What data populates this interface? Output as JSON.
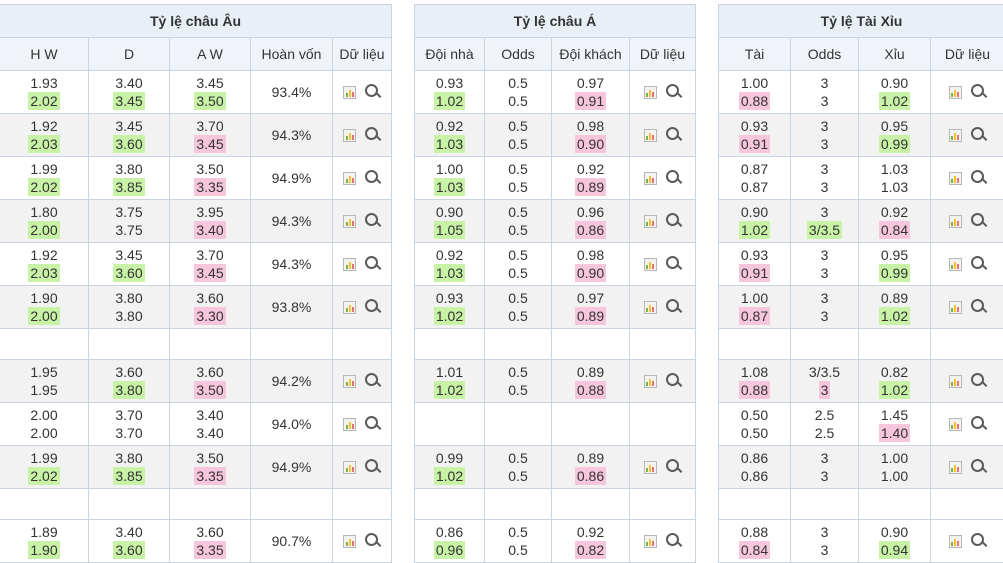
{
  "colors": {
    "up": "#c8f2a6",
    "down": "#f7c6dc",
    "header_bg": "#e8eff7",
    "border": "#c9d5e2"
  },
  "icons": {
    "chart": "bar-chart-icon",
    "search": "magnifier-icon"
  },
  "sections": [
    {
      "title": "Tỷ lệ châu Âu",
      "headers": [
        "H W",
        "D",
        "A W",
        "Hoàn vốn",
        "Dữ liệu"
      ]
    },
    {
      "title": "Tỷ lệ châu Á",
      "headers": [
        "Đội nhà",
        "Odds",
        "Đội khách",
        "Dữ liệu"
      ]
    },
    {
      "title": "Tỷ lệ Tài Xỉu",
      "headers": [
        "Tài",
        "Odds",
        "Xỉu",
        "Dữ liệu"
      ]
    }
  ],
  "rows": [
    {
      "style": "white",
      "eu": {
        "hw": [
          "1.93",
          "2.02"
        ],
        "d": [
          "3.40",
          "3.45"
        ],
        "aw": [
          "3.45",
          "3.50"
        ],
        "hwc": "up",
        "dc": "up",
        "awc": "up",
        "pct": "93.4%"
      },
      "asia": {
        "home": [
          "0.93",
          "1.02"
        ],
        "odds": [
          "0.5",
          "0.5"
        ],
        "away": [
          "0.97",
          "0.91"
        ],
        "hc": "up",
        "ac": "down"
      },
      "ou": {
        "over": [
          "1.00",
          "0.88"
        ],
        "odds": [
          "3",
          "3"
        ],
        "under": [
          "0.90",
          "1.02"
        ],
        "oc": "down",
        "uc": "up"
      }
    },
    {
      "style": "grey",
      "eu": {
        "hw": [
          "1.92",
          "2.03"
        ],
        "d": [
          "3.45",
          "3.60"
        ],
        "aw": [
          "3.70",
          "3.45"
        ],
        "hwc": "up",
        "dc": "up",
        "awc": "down",
        "pct": "94.3%"
      },
      "asia": {
        "home": [
          "0.92",
          "1.03"
        ],
        "odds": [
          "0.5",
          "0.5"
        ],
        "away": [
          "0.98",
          "0.90"
        ],
        "hc": "up",
        "ac": "down"
      },
      "ou": {
        "over": [
          "0.93",
          "0.91"
        ],
        "odds": [
          "3",
          "3"
        ],
        "under": [
          "0.95",
          "0.99"
        ],
        "oc": "down",
        "uc": "up"
      }
    },
    {
      "style": "white",
      "eu": {
        "hw": [
          "1.99",
          "2.02"
        ],
        "d": [
          "3.80",
          "3.85"
        ],
        "aw": [
          "3.50",
          "3.35"
        ],
        "hwc": "up",
        "dc": "up",
        "awc": "down",
        "pct": "94.9%"
      },
      "asia": {
        "home": [
          "1.00",
          "1.03"
        ],
        "odds": [
          "0.5",
          "0.5"
        ],
        "away": [
          "0.92",
          "0.89"
        ],
        "hc": "up",
        "ac": "down"
      },
      "ou": {
        "over": [
          "0.87",
          "0.87"
        ],
        "odds": [
          "3",
          "3"
        ],
        "under": [
          "1.03",
          "1.03"
        ],
        "oc": "",
        "uc": ""
      }
    },
    {
      "style": "grey",
      "eu": {
        "hw": [
          "1.80",
          "2.00"
        ],
        "d": [
          "3.75",
          "3.75"
        ],
        "aw": [
          "3.95",
          "3.40"
        ],
        "hwc": "up",
        "dc": "",
        "awc": "down",
        "pct": "94.3%"
      },
      "asia": {
        "home": [
          "0.90",
          "1.05"
        ],
        "odds": [
          "0.5",
          "0.5"
        ],
        "away": [
          "0.96",
          "0.86"
        ],
        "hc": "up",
        "ac": "down"
      },
      "ou": {
        "over": [
          "0.90",
          "1.02"
        ],
        "odds": [
          "3",
          "3/3.5"
        ],
        "under": [
          "0.92",
          "0.84"
        ],
        "oc": "up",
        "odc": "up",
        "uc": "down"
      }
    },
    {
      "style": "white",
      "eu": {
        "hw": [
          "1.92",
          "2.03"
        ],
        "d": [
          "3.45",
          "3.60"
        ],
        "aw": [
          "3.70",
          "3.45"
        ],
        "hwc": "up",
        "dc": "up",
        "awc": "down",
        "pct": "94.3%"
      },
      "asia": {
        "home": [
          "0.92",
          "1.03"
        ],
        "odds": [
          "0.5",
          "0.5"
        ],
        "away": [
          "0.98",
          "0.90"
        ],
        "hc": "up",
        "ac": "down"
      },
      "ou": {
        "over": [
          "0.93",
          "0.91"
        ],
        "odds": [
          "3",
          "3"
        ],
        "under": [
          "0.95",
          "0.99"
        ],
        "oc": "down",
        "uc": "up"
      }
    },
    {
      "style": "grey",
      "eu": {
        "hw": [
          "1.90",
          "2.00"
        ],
        "d": [
          "3.80",
          "3.80"
        ],
        "aw": [
          "3.60",
          "3.30"
        ],
        "hwc": "up",
        "dc": "",
        "awc": "down",
        "pct": "93.8%"
      },
      "asia": {
        "home": [
          "0.93",
          "1.02"
        ],
        "odds": [
          "0.5",
          "0.5"
        ],
        "away": [
          "0.97",
          "0.89"
        ],
        "hc": "up",
        "ac": "down"
      },
      "ou": {
        "over": [
          "1.00",
          "0.87"
        ],
        "odds": [
          "3",
          "3"
        ],
        "under": [
          "0.89",
          "1.02"
        ],
        "oc": "down",
        "uc": "up"
      }
    },
    {
      "style": "blank"
    },
    {
      "style": "grey",
      "eu": {
        "hw": [
          "1.95",
          "1.95"
        ],
        "d": [
          "3.60",
          "3.80"
        ],
        "aw": [
          "3.60",
          "3.50"
        ],
        "hwc": "",
        "dc": "up",
        "awc": "down",
        "pct": "94.2%"
      },
      "asia": {
        "home": [
          "1.01",
          "1.02"
        ],
        "odds": [
          "0.5",
          "0.5"
        ],
        "away": [
          "0.89",
          "0.88"
        ],
        "hc": "up",
        "ac": "down"
      },
      "ou": {
        "over": [
          "1.08",
          "0.88"
        ],
        "odds": [
          "3/3.5",
          "3"
        ],
        "under": [
          "0.82",
          "1.02"
        ],
        "oc": "down",
        "odc": "down",
        "uc": "up"
      }
    },
    {
      "style": "white",
      "eu": {
        "hw": [
          "2.00",
          "2.00"
        ],
        "d": [
          "3.70",
          "3.70"
        ],
        "aw": [
          "3.40",
          "3.40"
        ],
        "hwc": "",
        "dc": "",
        "awc": "",
        "pct": "94.0%"
      },
      "asia": null,
      "ou": {
        "over": [
          "0.50",
          "0.50"
        ],
        "odds": [
          "2.5",
          "2.5"
        ],
        "under": [
          "1.45",
          "1.40"
        ],
        "oc": "",
        "uc": "down"
      }
    },
    {
      "style": "grey",
      "eu": {
        "hw": [
          "1.99",
          "2.02"
        ],
        "d": [
          "3.80",
          "3.85"
        ],
        "aw": [
          "3.50",
          "3.35"
        ],
        "hwc": "up",
        "dc": "up",
        "awc": "down",
        "pct": "94.9%"
      },
      "asia": {
        "home": [
          "0.99",
          "1.02"
        ],
        "odds": [
          "0.5",
          "0.5"
        ],
        "away": [
          "0.89",
          "0.86"
        ],
        "hc": "up",
        "ac": "down"
      },
      "ou": {
        "over": [
          "0.86",
          "0.86"
        ],
        "odds": [
          "3",
          "3"
        ],
        "under": [
          "1.00",
          "1.00"
        ],
        "oc": "",
        "uc": ""
      }
    },
    {
      "style": "blank"
    },
    {
      "style": "white",
      "eu": {
        "hw": [
          "1.89",
          "1.90"
        ],
        "d": [
          "3.40",
          "3.60"
        ],
        "aw": [
          "3.60",
          "3.35"
        ],
        "hwc": "up",
        "dc": "up",
        "awc": "down",
        "pct": "90.7%"
      },
      "asia": {
        "home": [
          "0.86",
          "0.96"
        ],
        "odds": [
          "0.5",
          "0.5"
        ],
        "away": [
          "0.92",
          "0.82"
        ],
        "hc": "up",
        "ac": "down"
      },
      "ou": {
        "over": [
          "0.88",
          "0.84"
        ],
        "odds": [
          "3",
          "3"
        ],
        "under": [
          "0.90",
          "0.94"
        ],
        "oc": "down",
        "uc": "up"
      }
    }
  ]
}
